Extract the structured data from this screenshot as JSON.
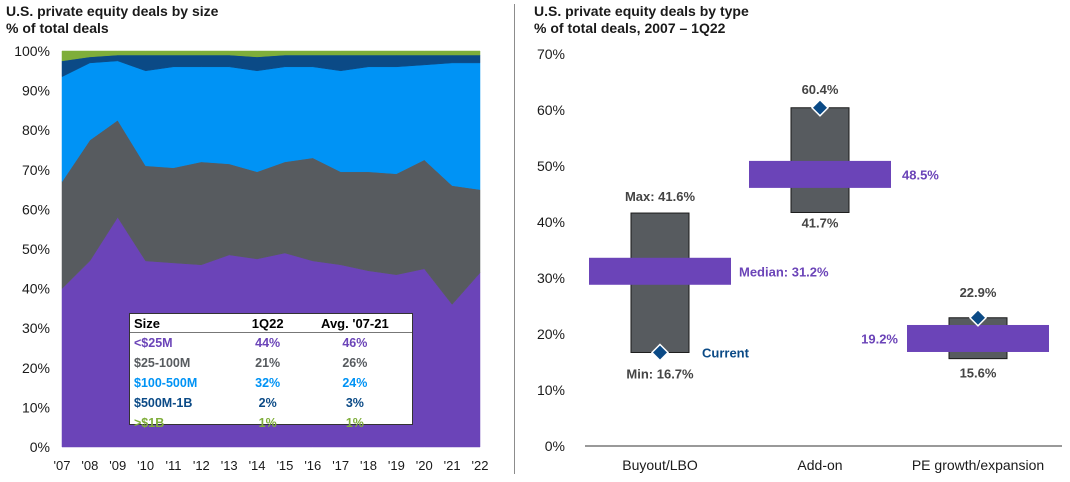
{
  "left": {
    "title": "U.S. private equity deals by size",
    "subtitle": "% of total deals"
  },
  "right": {
    "title": "U.S. private equity deals by type",
    "subtitle": "% of total deals, 2007 – 1Q22"
  },
  "colors": {
    "lt25m": "#6b44b8",
    "25_100m": "#575b5f",
    "100_500m": "#0093f5",
    "500m_1b": "#0b4a86",
    "gt1b": "#7fae3a",
    "buyout_box": "#575b5f",
    "median_bar": "#6b44b8",
    "current_marker": "#0b4a86"
  },
  "legend_table": {
    "headers": [
      "Size",
      "1Q22",
      "Avg. '07-21"
    ],
    "rows": [
      {
        "label": "<$25M",
        "q122": "44%",
        "avg": "46%",
        "color": "#6b44b8"
      },
      {
        "label": "$25-100M",
        "q122": "21%",
        "avg": "26%",
        "color": "#575b5f"
      },
      {
        "label": "$100-500M",
        "q122": "32%",
        "avg": "24%",
        "color": "#0093f5"
      },
      {
        "label": "$500M-1B",
        "q122": "2%",
        "avg": "3%",
        "color": "#0b4a86"
      },
      {
        "label": ">$1B",
        "q122": "1%",
        "avg": "1%",
        "color": "#7fae3a"
      }
    ]
  },
  "chart_data": [
    {
      "type": "area",
      "stacked": true,
      "title": "U.S. private equity deals by size",
      "subtitle": "% of total deals",
      "x": [
        "'07",
        "'08",
        "'09",
        "'10",
        "'11",
        "'12",
        "'13",
        "'14",
        "'15",
        "'16",
        "'17",
        "'18",
        "'19",
        "'20",
        "'21",
        "'22"
      ],
      "y_ticks": [
        "0%",
        "10%",
        "20%",
        "30%",
        "40%",
        "50%",
        "60%",
        "70%",
        "80%",
        "90%",
        "100%"
      ],
      "ylim": [
        0,
        100
      ],
      "series": [
        {
          "name": "<$25M",
          "color": "#6b44b8",
          "values": [
            40,
            47,
            58,
            47,
            46.5,
            46,
            48.5,
            47.5,
            49,
            47,
            46,
            44.5,
            43.5,
            45,
            36,
            44
          ]
        },
        {
          "name": "$25-100M",
          "color": "#575b5f",
          "values": [
            27,
            30.5,
            24.5,
            24,
            24,
            26,
            23,
            22,
            23,
            26,
            23.5,
            25,
            25.5,
            27.5,
            30,
            21
          ]
        },
        {
          "name": "$100-500M",
          "color": "#0093f5",
          "values": [
            26.5,
            19.5,
            15,
            24,
            25.5,
            24,
            24.5,
            25.5,
            24,
            23,
            25.5,
            26.5,
            27,
            24,
            31,
            32
          ]
        },
        {
          "name": "$500M-1B",
          "color": "#0b4a86",
          "values": [
            4,
            1.5,
            1.5,
            4,
            3,
            3,
            3,
            3.5,
            3,
            3,
            4,
            3,
            3,
            2.5,
            2,
            2
          ]
        },
        {
          "name": ">$1B",
          "color": "#7fae3a",
          "values": [
            2.5,
            1.5,
            1,
            1,
            1,
            1,
            1,
            1.5,
            1,
            1,
            1,
            1,
            1,
            1,
            1,
            1
          ]
        }
      ]
    },
    {
      "type": "range-box",
      "title": "U.S. private equity deals by type",
      "subtitle": "% of total deals, 2007 – 1Q22",
      "categories": [
        "Buyout/LBO",
        "Add-on",
        "PE growth/expansion"
      ],
      "y_ticks": [
        "0%",
        "10%",
        "20%",
        "30%",
        "40%",
        "50%",
        "60%",
        "70%"
      ],
      "ylim": [
        0,
        70
      ],
      "max": [
        41.6,
        60.4,
        22.9
      ],
      "min": [
        16.7,
        41.7,
        15.6
      ],
      "median": [
        31.2,
        48.5,
        19.2
      ],
      "current": [
        16.7,
        60.4,
        22.9
      ],
      "labels": {
        "max": [
          "Max: 41.6%",
          "60.4%",
          "22.9%"
        ],
        "min": [
          "Min: 16.7%",
          "41.7%",
          "15.6%"
        ],
        "median": [
          "Median: 31.2%",
          "48.5%",
          "19.2%"
        ],
        "current": "Current"
      }
    }
  ]
}
